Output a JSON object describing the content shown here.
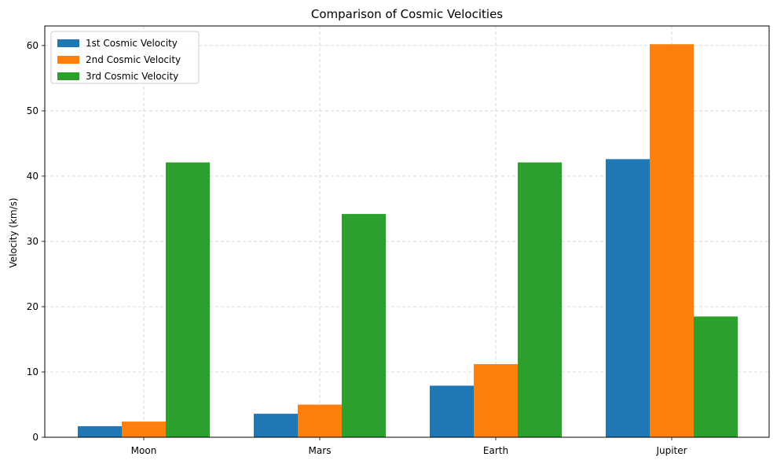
{
  "chart_data": {
    "type": "bar",
    "title": "Comparison of Cosmic Velocities",
    "xlabel": "",
    "ylabel": "Velocity (km/s)",
    "categories": [
      "Moon",
      "Mars",
      "Earth",
      "Jupiter"
    ],
    "ylim": [
      0,
      63
    ],
    "yticks": [
      0,
      10,
      20,
      30,
      40,
      50,
      60
    ],
    "grid": true,
    "legend_position": "top-left",
    "series": [
      {
        "name": "1st Cosmic Velocity",
        "color": "#1f77b4",
        "values": [
          1.7,
          3.6,
          7.9,
          42.6
        ]
      },
      {
        "name": "2nd Cosmic Velocity",
        "color": "#ff7f0e",
        "values": [
          2.4,
          5.0,
          11.2,
          60.2
        ]
      },
      {
        "name": "3rd Cosmic Velocity",
        "color": "#2ca02c",
        "values": [
          42.1,
          34.2,
          42.1,
          18.5
        ]
      }
    ]
  }
}
